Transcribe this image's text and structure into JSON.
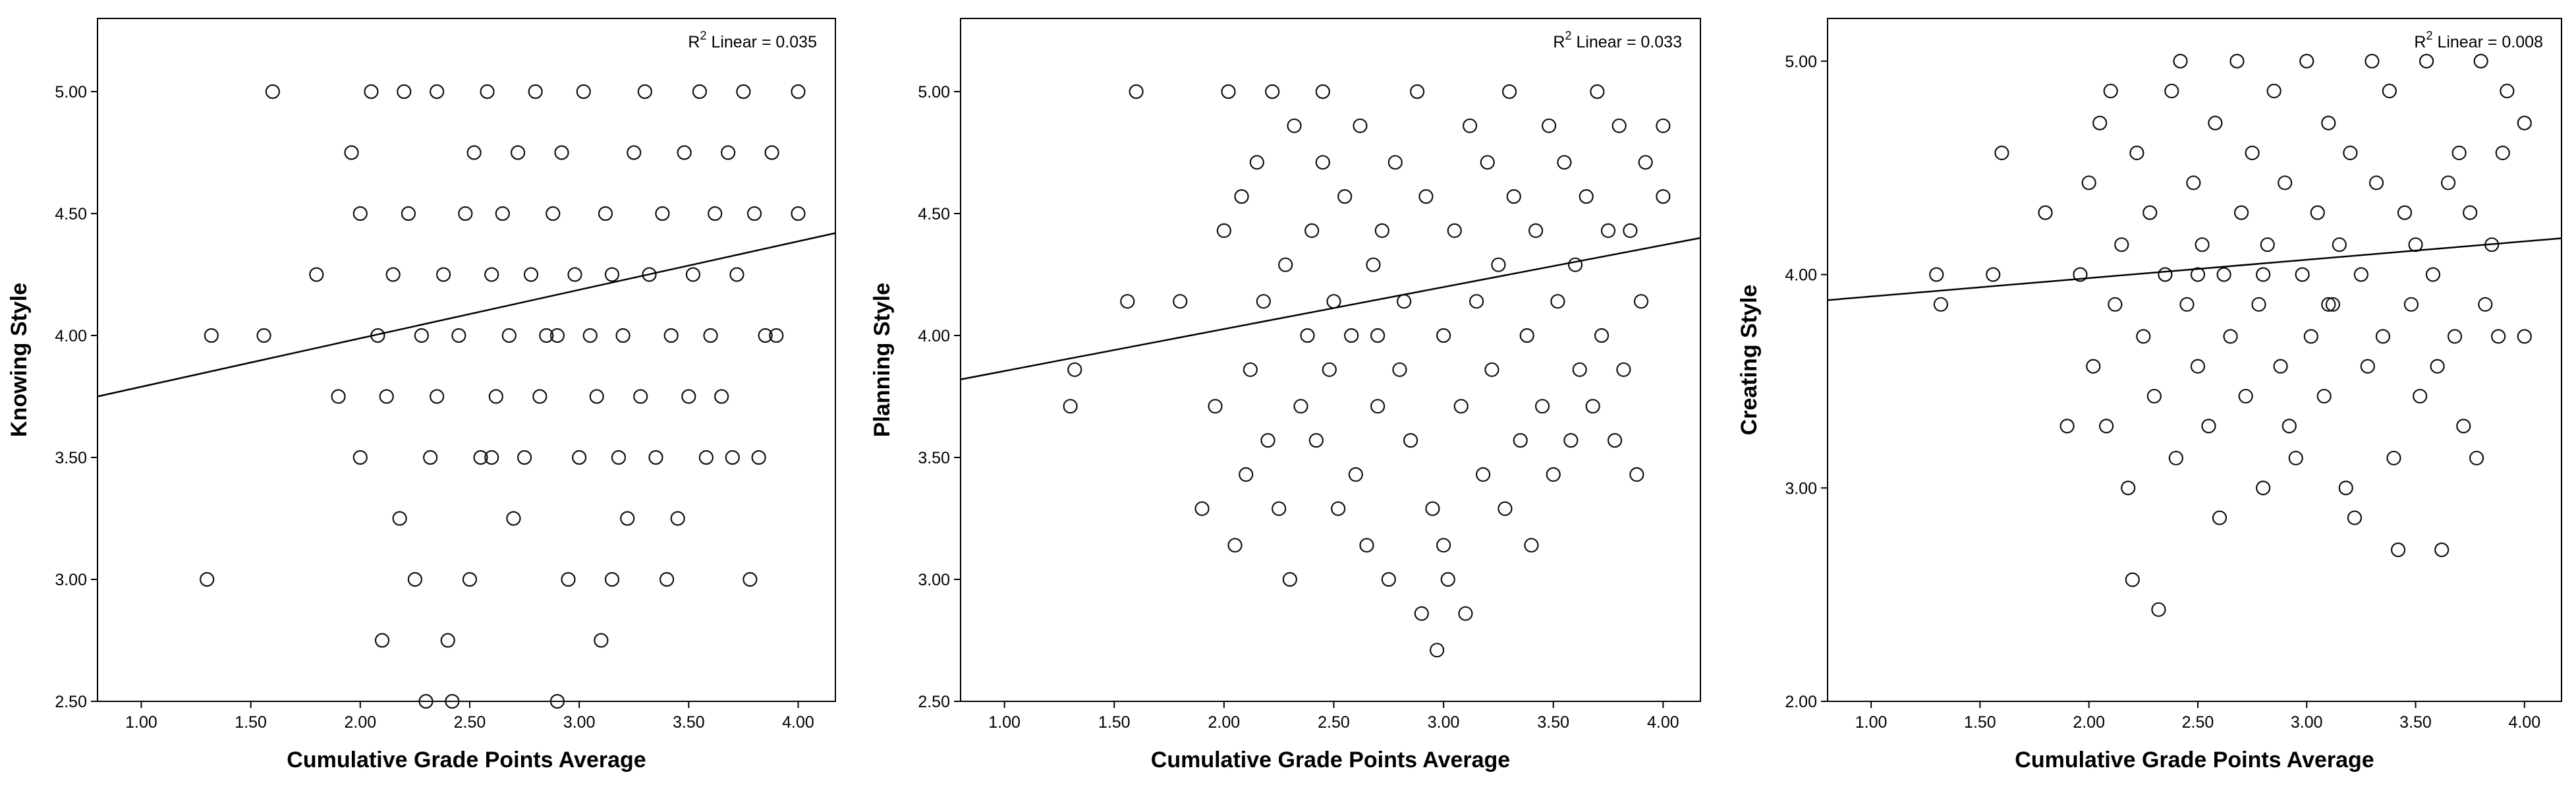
{
  "chart_data": [
    {
      "type": "scatter",
      "xlabel": "Cumulative Grade Points Average",
      "ylabel": "Knowing Style",
      "xlim": [
        0.8,
        4.17
      ],
      "ylim": [
        2.5,
        5.3
      ],
      "xticks": [
        "1.00",
        "1.50",
        "2.00",
        "2.50",
        "3.00",
        "3.50",
        "4.00"
      ],
      "yticks": [
        "2.50",
        "3.00",
        "3.50",
        "4.00",
        "4.50",
        "5.00"
      ],
      "grid": false,
      "annotation": {
        "prefix": "R",
        "sup": "2",
        "suffix": " Linear = 0.035"
      },
      "fit_line": {
        "x": [
          0.8,
          4.17
        ],
        "y": [
          3.75,
          4.42
        ]
      },
      "points": [
        [
          1.3,
          3.0
        ],
        [
          1.32,
          4.0
        ],
        [
          1.56,
          4.0
        ],
        [
          1.6,
          5.0
        ],
        [
          1.8,
          4.25
        ],
        [
          1.9,
          3.75
        ],
        [
          1.96,
          4.75
        ],
        [
          2.0,
          3.5
        ],
        [
          2.0,
          4.5
        ],
        [
          2.05,
          5.0
        ],
        [
          2.08,
          4.0
        ],
        [
          2.1,
          2.75
        ],
        [
          2.12,
          3.75
        ],
        [
          2.15,
          4.25
        ],
        [
          2.18,
          3.25
        ],
        [
          2.2,
          5.0
        ],
        [
          2.22,
          4.5
        ],
        [
          2.25,
          3.0
        ],
        [
          2.28,
          4.0
        ],
        [
          2.3,
          2.5
        ],
        [
          2.32,
          3.5
        ],
        [
          2.35,
          3.75
        ],
        [
          2.38,
          4.25
        ],
        [
          2.4,
          2.75
        ],
        [
          2.42,
          2.5
        ],
        [
          2.45,
          4.0
        ],
        [
          2.48,
          4.5
        ],
        [
          2.5,
          3.0
        ],
        [
          2.52,
          4.75
        ],
        [
          2.55,
          3.5
        ],
        [
          2.58,
          5.0
        ],
        [
          2.6,
          4.25
        ],
        [
          2.62,
          3.75
        ],
        [
          2.65,
          4.5
        ],
        [
          2.68,
          4.0
        ],
        [
          2.7,
          3.25
        ],
        [
          2.72,
          4.75
        ],
        [
          2.75,
          3.5
        ],
        [
          2.78,
          4.25
        ],
        [
          2.8,
          5.0
        ],
        [
          2.82,
          3.75
        ],
        [
          2.85,
          4.0
        ],
        [
          2.88,
          4.5
        ],
        [
          2.9,
          2.5
        ],
        [
          2.92,
          4.75
        ],
        [
          2.95,
          3.0
        ],
        [
          2.98,
          4.25
        ],
        [
          3.0,
          3.5
        ],
        [
          3.02,
          5.0
        ],
        [
          3.05,
          4.0
        ],
        [
          3.08,
          3.75
        ],
        [
          3.1,
          2.75
        ],
        [
          3.12,
          4.5
        ],
        [
          3.15,
          4.25
        ],
        [
          3.18,
          3.5
        ],
        [
          3.2,
          4.0
        ],
        [
          3.22,
          3.25
        ],
        [
          3.25,
          4.75
        ],
        [
          3.28,
          3.75
        ],
        [
          3.3,
          5.0
        ],
        [
          3.32,
          4.25
        ],
        [
          3.35,
          3.5
        ],
        [
          3.38,
          4.5
        ],
        [
          3.4,
          3.0
        ],
        [
          3.42,
          4.0
        ],
        [
          3.45,
          3.25
        ],
        [
          3.48,
          4.75
        ],
        [
          3.5,
          3.75
        ],
        [
          3.52,
          4.25
        ],
        [
          3.55,
          5.0
        ],
        [
          3.58,
          3.5
        ],
        [
          3.6,
          4.0
        ],
        [
          3.62,
          4.5
        ],
        [
          3.65,
          3.75
        ],
        [
          3.68,
          4.75
        ],
        [
          3.7,
          3.5
        ],
        [
          3.72,
          4.25
        ],
        [
          3.75,
          5.0
        ],
        [
          3.78,
          3.0
        ],
        [
          3.8,
          4.5
        ],
        [
          3.82,
          3.5
        ],
        [
          3.85,
          4.0
        ],
        [
          3.88,
          4.75
        ],
        [
          3.9,
          4.0
        ],
        [
          4.0,
          5.0
        ],
        [
          4.0,
          4.5
        ],
        [
          2.35,
          5.0
        ],
        [
          2.6,
          3.5
        ],
        [
          2.9,
          4.0
        ],
        [
          3.15,
          3.0
        ]
      ]
    },
    {
      "type": "scatter",
      "xlabel": "Cumulative Grade Points Average",
      "ylabel": "Planning Style",
      "xlim": [
        0.8,
        4.17
      ],
      "ylim": [
        2.5,
        5.3
      ],
      "xticks": [
        "1.00",
        "1.50",
        "2.00",
        "2.50",
        "3.00",
        "3.50",
        "4.00"
      ],
      "yticks": [
        "2.50",
        "3.00",
        "3.50",
        "4.00",
        "4.50",
        "5.00"
      ],
      "grid": false,
      "annotation": {
        "prefix": "R",
        "sup": "2",
        "suffix": " Linear = 0.033"
      },
      "fit_line": {
        "x": [
          0.8,
          4.17
        ],
        "y": [
          3.82,
          4.4
        ]
      },
      "points": [
        [
          1.3,
          3.71
        ],
        [
          1.32,
          3.86
        ],
        [
          1.56,
          4.14
        ],
        [
          1.6,
          5.0
        ],
        [
          1.8,
          4.14
        ],
        [
          1.9,
          3.29
        ],
        [
          1.96,
          3.71
        ],
        [
          2.0,
          4.43
        ],
        [
          2.02,
          5.0
        ],
        [
          2.05,
          3.14
        ],
        [
          2.08,
          4.57
        ],
        [
          2.1,
          3.43
        ],
        [
          2.12,
          3.86
        ],
        [
          2.15,
          4.71
        ],
        [
          2.18,
          4.14
        ],
        [
          2.2,
          3.57
        ],
        [
          2.22,
          5.0
        ],
        [
          2.25,
          3.29
        ],
        [
          2.28,
          4.29
        ],
        [
          2.3,
          3.0
        ],
        [
          2.32,
          4.86
        ],
        [
          2.35,
          3.71
        ],
        [
          2.38,
          4.0
        ],
        [
          2.4,
          4.43
        ],
        [
          2.42,
          3.57
        ],
        [
          2.45,
          4.71
        ],
        [
          2.48,
          3.86
        ],
        [
          2.5,
          4.14
        ],
        [
          2.52,
          3.29
        ],
        [
          2.55,
          4.57
        ],
        [
          2.58,
          4.0
        ],
        [
          2.6,
          3.43
        ],
        [
          2.62,
          4.86
        ],
        [
          2.65,
          3.14
        ],
        [
          2.68,
          4.29
        ],
        [
          2.7,
          3.71
        ],
        [
          2.72,
          4.43
        ],
        [
          2.75,
          3.0
        ],
        [
          2.78,
          4.71
        ],
        [
          2.8,
          3.86
        ],
        [
          2.82,
          4.14
        ],
        [
          2.85,
          3.57
        ],
        [
          2.88,
          5.0
        ],
        [
          2.9,
          2.86
        ],
        [
          2.92,
          4.57
        ],
        [
          2.95,
          3.29
        ],
        [
          2.97,
          2.71
        ],
        [
          3.0,
          4.0
        ],
        [
          3.02,
          3.0
        ],
        [
          3.05,
          4.43
        ],
        [
          3.08,
          3.71
        ],
        [
          3.1,
          2.86
        ],
        [
          3.12,
          4.86
        ],
        [
          3.15,
          4.14
        ],
        [
          3.18,
          3.43
        ],
        [
          3.2,
          4.71
        ],
        [
          3.22,
          3.86
        ],
        [
          3.25,
          4.29
        ],
        [
          3.28,
          3.29
        ],
        [
          3.3,
          5.0
        ],
        [
          3.32,
          4.57
        ],
        [
          3.35,
          3.57
        ],
        [
          3.38,
          4.0
        ],
        [
          3.4,
          3.14
        ],
        [
          3.42,
          4.43
        ],
        [
          3.45,
          3.71
        ],
        [
          3.48,
          4.86
        ],
        [
          3.5,
          3.43
        ],
        [
          3.52,
          4.14
        ],
        [
          3.55,
          4.71
        ],
        [
          3.58,
          3.57
        ],
        [
          3.6,
          4.29
        ],
        [
          3.62,
          3.86
        ],
        [
          3.65,
          4.57
        ],
        [
          3.68,
          3.71
        ],
        [
          3.7,
          5.0
        ],
        [
          3.72,
          4.0
        ],
        [
          3.75,
          4.43
        ],
        [
          3.78,
          3.57
        ],
        [
          3.8,
          4.86
        ],
        [
          3.82,
          3.86
        ],
        [
          3.85,
          4.43
        ],
        [
          3.88,
          3.43
        ],
        [
          3.9,
          4.14
        ],
        [
          3.92,
          4.71
        ],
        [
          4.0,
          4.86
        ],
        [
          4.0,
          4.57
        ],
        [
          2.45,
          5.0
        ],
        [
          2.7,
          4.0
        ],
        [
          3.0,
          3.14
        ]
      ]
    },
    {
      "type": "scatter",
      "xlabel": "Cumulative Grade Points Average",
      "ylabel": "Creating Style",
      "xlim": [
        0.8,
        4.17
      ],
      "ylim": [
        2.0,
        5.2
      ],
      "xticks": [
        "1.00",
        "1.50",
        "2.00",
        "2.50",
        "3.00",
        "3.50",
        "4.00"
      ],
      "yticks": [
        "2.00",
        "3.00",
        "4.00",
        "5.00"
      ],
      "grid": false,
      "annotation": {
        "prefix": "R",
        "sup": "2",
        "suffix": " Linear = 0.008"
      },
      "fit_line": {
        "x": [
          0.8,
          4.17
        ],
        "y": [
          3.88,
          4.17
        ]
      },
      "points": [
        [
          1.3,
          4.0
        ],
        [
          1.32,
          3.86
        ],
        [
          1.56,
          4.0
        ],
        [
          1.6,
          4.57
        ],
        [
          1.8,
          4.29
        ],
        [
          1.9,
          3.29
        ],
        [
          1.96,
          4.0
        ],
        [
          2.0,
          4.43
        ],
        [
          2.02,
          3.57
        ],
        [
          2.05,
          4.71
        ],
        [
          2.08,
          3.29
        ],
        [
          2.1,
          4.86
        ],
        [
          2.12,
          3.86
        ],
        [
          2.15,
          4.14
        ],
        [
          2.18,
          3.0
        ],
        [
          2.2,
          2.57
        ],
        [
          2.22,
          4.57
        ],
        [
          2.25,
          3.71
        ],
        [
          2.28,
          4.29
        ],
        [
          2.3,
          3.43
        ],
        [
          2.32,
          2.43
        ],
        [
          2.35,
          4.0
        ],
        [
          2.38,
          4.86
        ],
        [
          2.4,
          3.14
        ],
        [
          2.42,
          5.0
        ],
        [
          2.45,
          3.86
        ],
        [
          2.48,
          4.43
        ],
        [
          2.5,
          3.57
        ],
        [
          2.52,
          4.14
        ],
        [
          2.55,
          3.29
        ],
        [
          2.58,
          4.71
        ],
        [
          2.6,
          2.86
        ],
        [
          2.62,
          4.0
        ],
        [
          2.65,
          3.71
        ],
        [
          2.68,
          5.0
        ],
        [
          2.7,
          4.29
        ],
        [
          2.72,
          3.43
        ],
        [
          2.75,
          4.57
        ],
        [
          2.78,
          3.86
        ],
        [
          2.8,
          3.0
        ],
        [
          2.82,
          4.14
        ],
        [
          2.85,
          4.86
        ],
        [
          2.88,
          3.57
        ],
        [
          2.9,
          4.43
        ],
        [
          2.92,
          3.29
        ],
        [
          2.95,
          3.14
        ],
        [
          2.98,
          4.0
        ],
        [
          3.0,
          5.0
        ],
        [
          3.02,
          3.71
        ],
        [
          3.05,
          4.29
        ],
        [
          3.08,
          3.43
        ],
        [
          3.1,
          4.71
        ],
        [
          3.12,
          3.86
        ],
        [
          3.15,
          4.14
        ],
        [
          3.18,
          3.0
        ],
        [
          3.2,
          4.57
        ],
        [
          3.22,
          2.86
        ],
        [
          3.25,
          4.0
        ],
        [
          3.28,
          3.57
        ],
        [
          3.3,
          5.0
        ],
        [
          3.32,
          4.43
        ],
        [
          3.35,
          3.71
        ],
        [
          3.38,
          4.86
        ],
        [
          3.4,
          3.14
        ],
        [
          3.42,
          2.71
        ],
        [
          3.45,
          4.29
        ],
        [
          3.48,
          3.86
        ],
        [
          3.5,
          4.14
        ],
        [
          3.52,
          3.43
        ],
        [
          3.55,
          5.0
        ],
        [
          3.58,
          4.0
        ],
        [
          3.6,
          3.57
        ],
        [
          3.62,
          2.71
        ],
        [
          3.65,
          4.43
        ],
        [
          3.68,
          3.71
        ],
        [
          3.7,
          4.57
        ],
        [
          3.72,
          3.29
        ],
        [
          3.75,
          4.29
        ],
        [
          3.78,
          3.14
        ],
        [
          3.8,
          5.0
        ],
        [
          3.82,
          3.86
        ],
        [
          3.85,
          4.14
        ],
        [
          3.88,
          3.71
        ],
        [
          3.9,
          4.57
        ],
        [
          3.92,
          4.86
        ],
        [
          4.0,
          4.71
        ],
        [
          4.0,
          3.71
        ],
        [
          2.5,
          4.0
        ],
        [
          2.8,
          4.0
        ],
        [
          3.1,
          3.86
        ]
      ]
    }
  ]
}
